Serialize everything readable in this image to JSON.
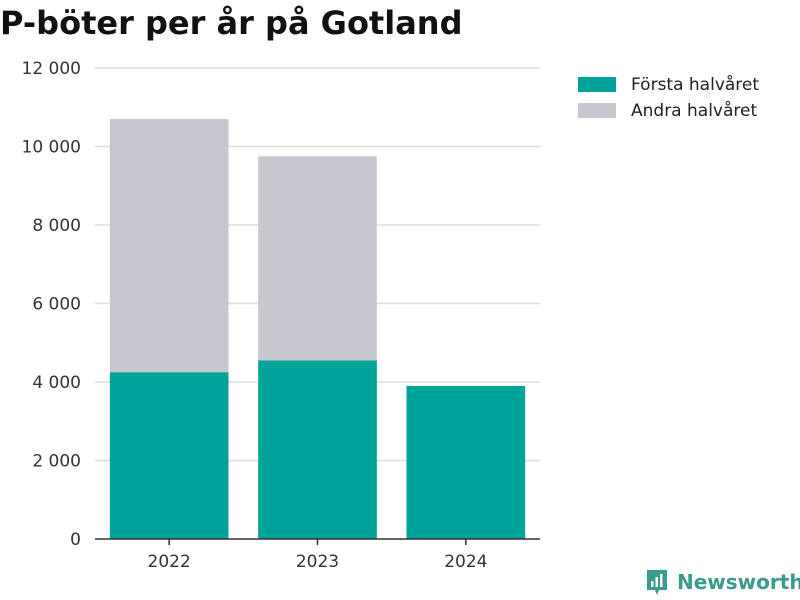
{
  "title": "P-böter per år på Gotland",
  "colors": {
    "first_half": "#00a39a",
    "second_half": "#c8c7d0",
    "grid": "#dddddd",
    "axis": "#333333"
  },
  "legend": [
    {
      "label": "Första halvåret",
      "color": "#00a39a"
    },
    {
      "label": "Andra halvåret",
      "color": "#c8c7d0"
    }
  ],
  "brand": {
    "name": "Newsworthy",
    "icon": "newsworthy-logo-icon"
  },
  "chart_data": {
    "type": "bar",
    "stacked": true,
    "categories": [
      "2022",
      "2023",
      "2024"
    ],
    "series": [
      {
        "name": "Första halvåret",
        "values": [
          4250,
          4550,
          3900
        ]
      },
      {
        "name": "Andra halvåret",
        "values": [
          6450,
          5200,
          0
        ]
      }
    ],
    "ylim": [
      0,
      12000
    ],
    "yticks": [
      0,
      2000,
      4000,
      6000,
      8000,
      10000,
      12000
    ],
    "ytick_labels": [
      "0",
      "2 000",
      "4 000",
      "6 000",
      "8 000",
      "10 000",
      "12 000"
    ],
    "grid": true,
    "legend_position": "top-right"
  }
}
